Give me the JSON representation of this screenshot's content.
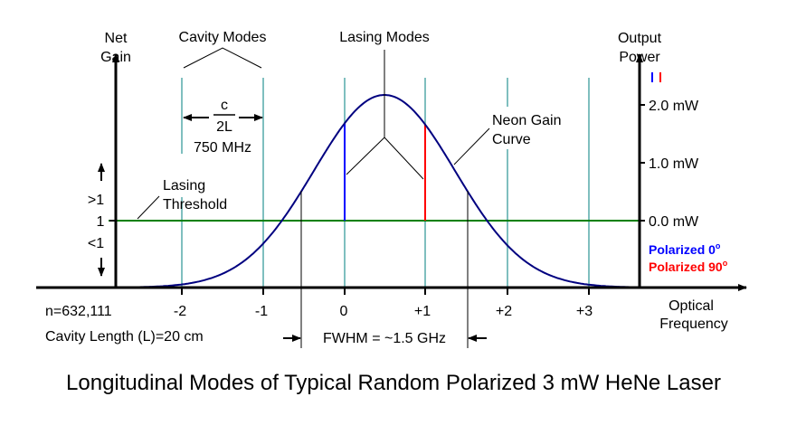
{
  "title": "Longitudinal Modes of Typical Random Polarized 3 mW HeNe Laser",
  "left_axis": {
    "label_line1": "Net",
    "label_line2": "Gain",
    "gt": ">1",
    "one": "1",
    "lt": "<1"
  },
  "right_axis": {
    "label_line1": "Output",
    "label_line2": "Power",
    "ticks": [
      "2.0 mW",
      "1.0 mW",
      "0.0 mW"
    ]
  },
  "x_axis": {
    "label_line1": "Optical",
    "label_line2": "Frequency",
    "ticks": [
      "-2",
      "-1",
      "0",
      "+1",
      "+2",
      "+3"
    ]
  },
  "annotations": {
    "cavity_modes": "Cavity Modes",
    "lasing_modes": "Lasing Modes",
    "numerator": "c",
    "denominator": "2L",
    "spacing": "750 MHz",
    "lasing_threshold_1": "Lasing",
    "lasing_threshold_2": "Threshold",
    "neon_gain_1": "Neon Gain",
    "neon_gain_2": "Curve",
    "mode_number": "n=632,111",
    "cavity_length": "Cavity Length (L)=20 cm",
    "fwhm": "FWHM = ~1.5 GHz"
  },
  "legend": [
    {
      "label": "Polarized 0",
      "sup": "o",
      "color": "#0000ff"
    },
    {
      "label": "Polarized 90",
      "sup": "o",
      "color": "#ff0000"
    }
  ],
  "colors": {
    "gain_curve": "#000080",
    "threshold": "#008000",
    "cavity_mode": "#7fbfbf",
    "mode_0": "#0000ff",
    "mode_1": "#ff0000"
  },
  "lasing_mode_power_mw": {
    "mode_0": 1.7,
    "mode_plus1": 1.7
  }
}
